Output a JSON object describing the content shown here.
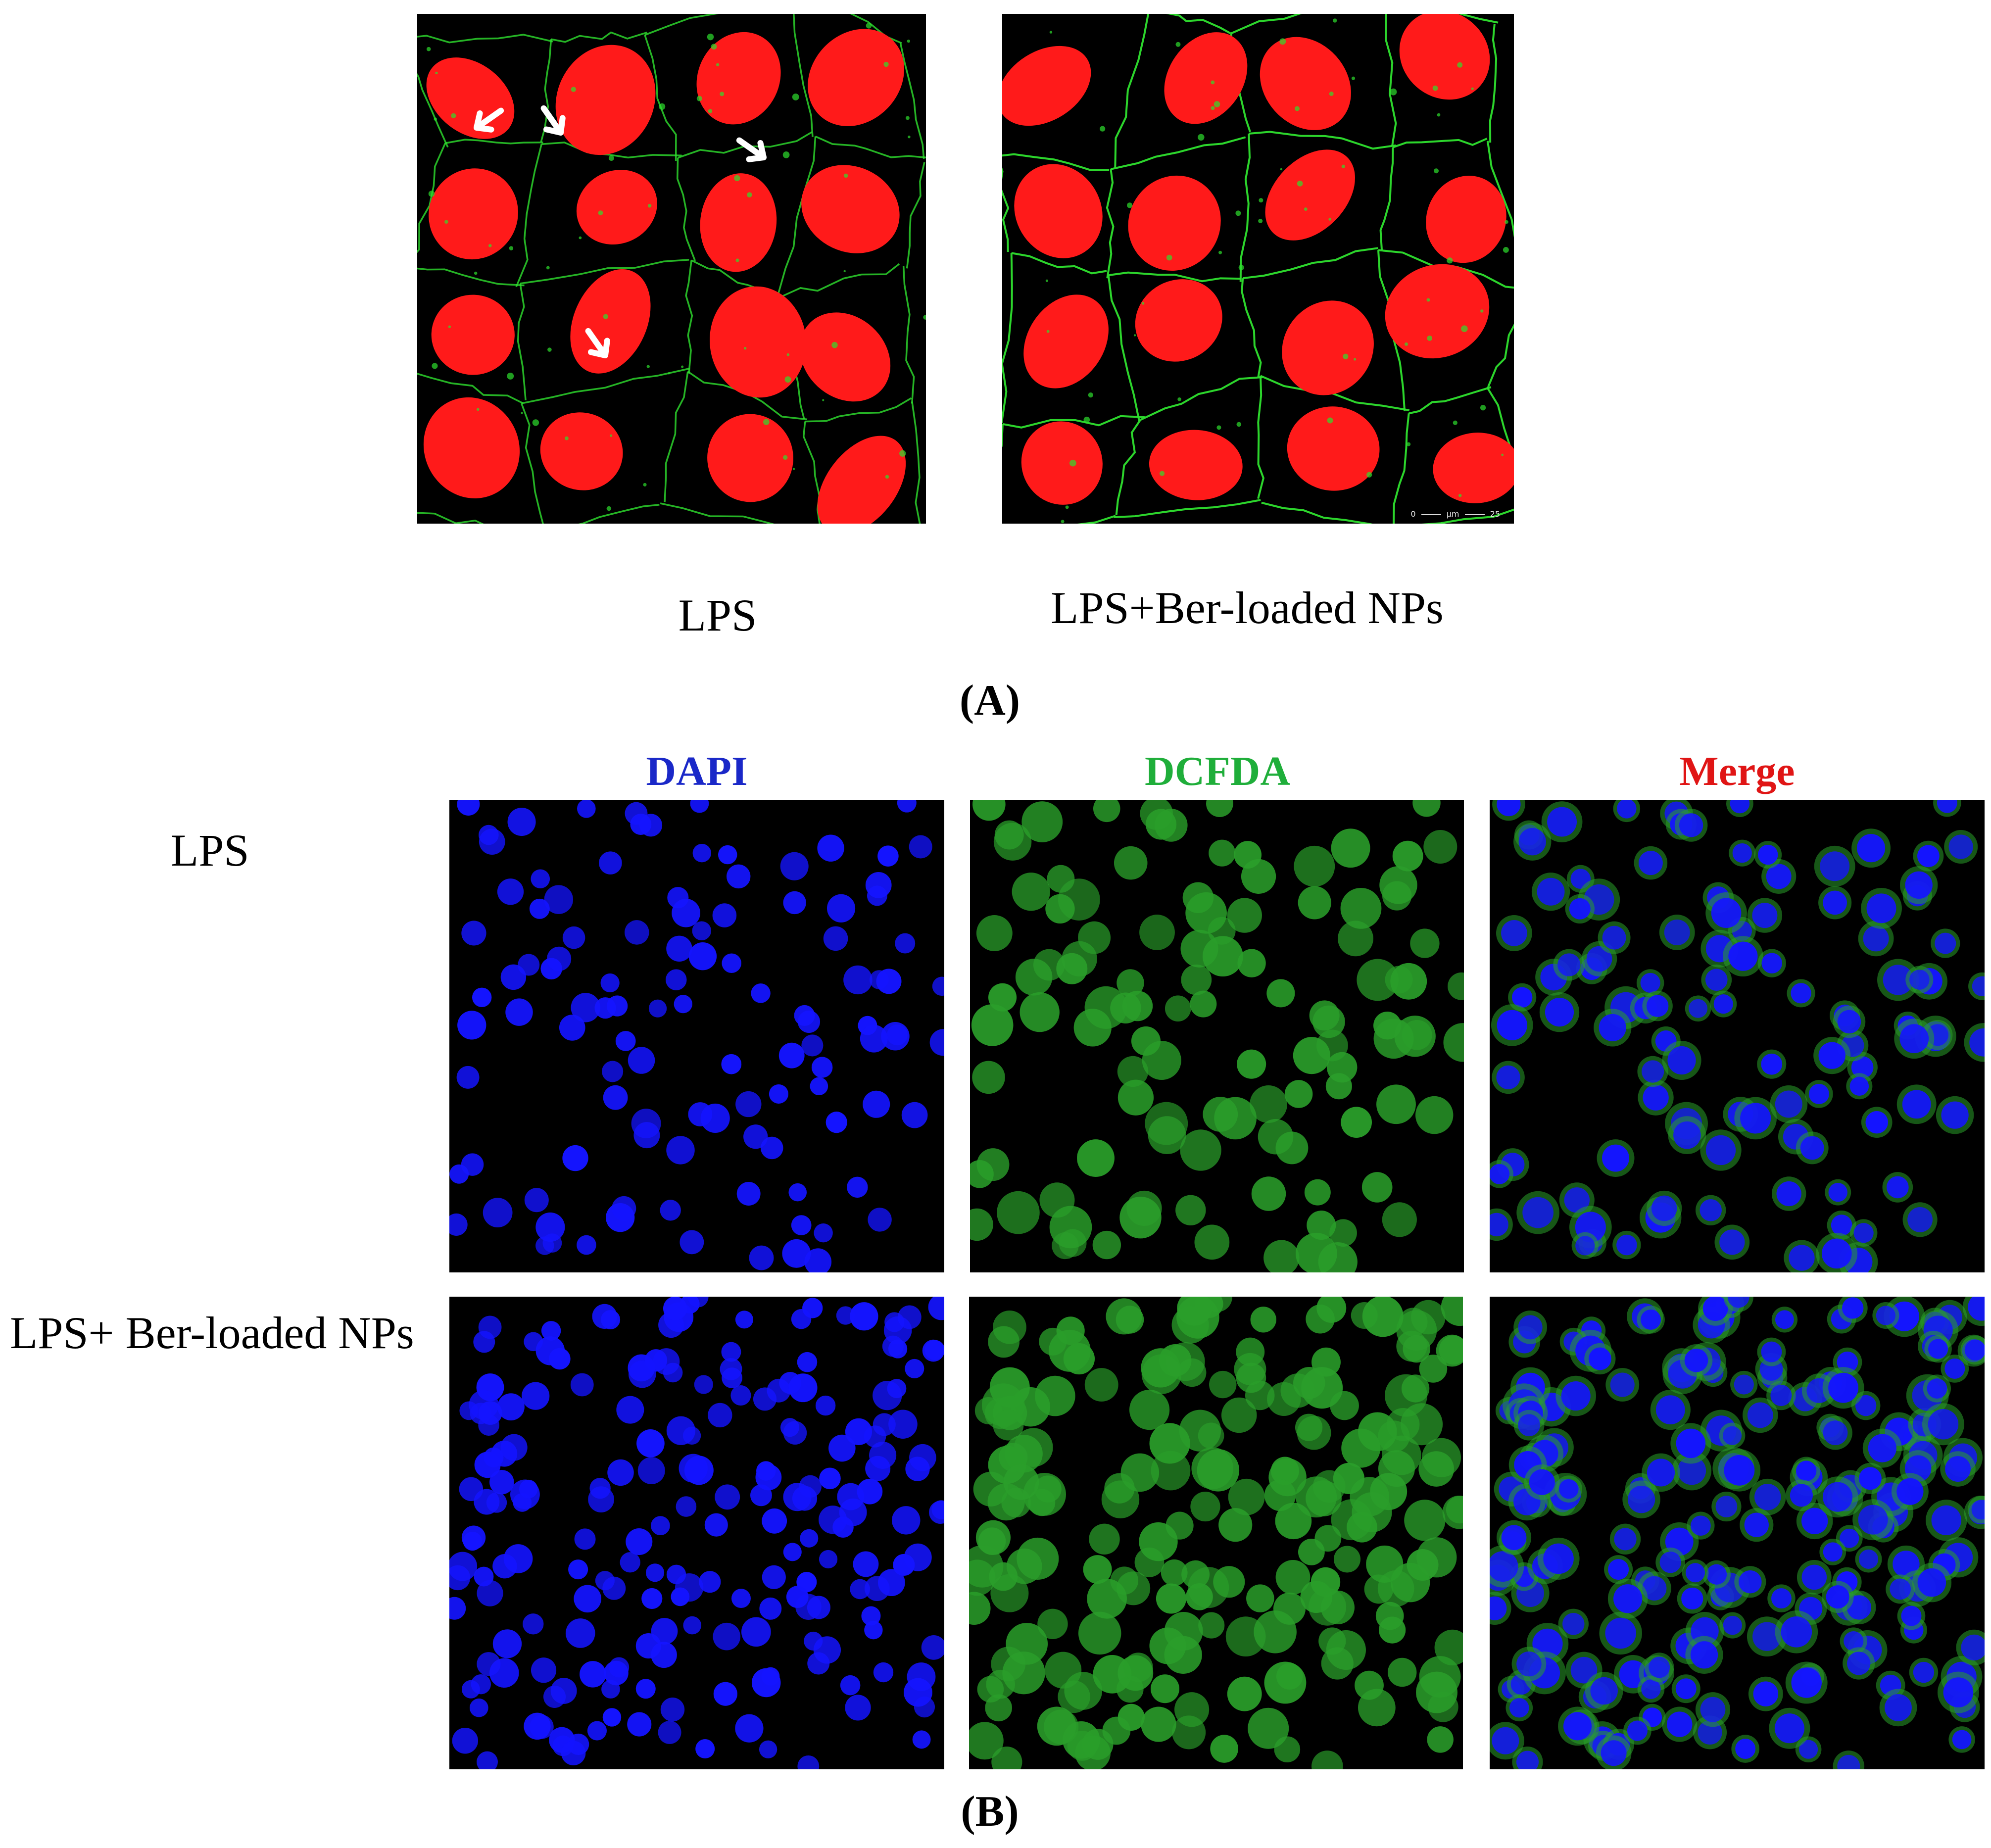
{
  "section_a": {
    "panel_letter": "(A)",
    "left_label": "LPS",
    "right_label": "LPS+Ber-loaded NPs",
    "scalebar": {
      "start": "0",
      "unit": "µm",
      "end": "25"
    },
    "colors": {
      "nuclei": "#ff1a1a",
      "junctions": "#2ee02e",
      "arrows": "#ffffff"
    },
    "arrow_count": 4
  },
  "section_b": {
    "panel_letter": "(B)",
    "columns": [
      {
        "label": "DAPI",
        "color": "#1a28c8"
      },
      {
        "label": "DCFDA",
        "color": "#1fae3a"
      },
      {
        "label": "Merge",
        "color": "#e01515"
      }
    ],
    "rows": [
      {
        "label": "LPS"
      },
      {
        "label": "LPS+ Ber-loaded NPs"
      }
    ],
    "colors": {
      "dapi": "#1414ff",
      "dcfda": "#2a9e2a"
    }
  }
}
